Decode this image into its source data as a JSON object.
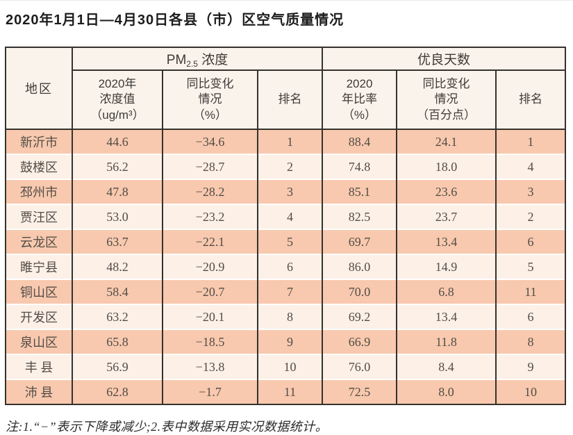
{
  "page": {
    "title": "2020年1月1日—4月30日各县（市）区空气质量情况",
    "note": "注:1.“−”表示下降或减少;2.表中数据采用实况数据统计。"
  },
  "colors": {
    "row_odd_bg": "#f8c9ae",
    "row_even_bg": "#fdf0e7",
    "header_bg": "#faf3ec",
    "border": "#35312d",
    "data_text": "#524c47"
  },
  "table": {
    "header": {
      "region": "地区",
      "pm25": {
        "prefix": "PM",
        "sub": "2.5",
        "suffix": " 浓度"
      },
      "good_days": "优良天数",
      "sub_pm_value": "2020年\n浓度值\n（ug/m³）",
      "sub_pm_change": "同比变化\n情况\n（%）",
      "sub_pm_rank": "排名",
      "sub_gd_rate": "2020\n年比率\n（%）",
      "sub_gd_change": "同比变化\n情况\n（百分点）",
      "sub_gd_rank": "排名"
    },
    "rows": [
      [
        "新沂市",
        "44.6",
        "−34.6",
        "1",
        "88.4",
        "24.1",
        "1"
      ],
      [
        "鼓楼区",
        "56.2",
        "−28.7",
        "2",
        "74.8",
        "18.0",
        "4"
      ],
      [
        "邳州市",
        "47.8",
        "−28.2",
        "3",
        "85.1",
        "23.6",
        "3"
      ],
      [
        "贾汪区",
        "53.0",
        "−23.2",
        "4",
        "82.5",
        "23.7",
        "2"
      ],
      [
        "云龙区",
        "63.7",
        "−22.1",
        "5",
        "69.7",
        "13.4",
        "6"
      ],
      [
        "睢宁县",
        "48.2",
        "−20.9",
        "6",
        "86.0",
        "14.9",
        "5"
      ],
      [
        "铜山区",
        "58.4",
        "−20.7",
        "7",
        "70.0",
        "6.8",
        "11"
      ],
      [
        "开发区",
        "63.2",
        "−20.1",
        "8",
        "69.2",
        "13.4",
        "6"
      ],
      [
        "泉山区",
        "65.8",
        "−18.5",
        "9",
        "66.9",
        "11.8",
        "8"
      ],
      [
        "丰 县",
        "56.9",
        "−13.8",
        "10",
        "76.0",
        "8.4",
        "9"
      ],
      [
        "沛 县",
        "62.8",
        "−1.7",
        "11",
        "72.5",
        "8.0",
        "10"
      ]
    ]
  },
  "chart_data": {
    "type": "table",
    "title": "2020年1月1日—4月30日各县（市）区空气质量情况",
    "column_groups": [
      "PM2.5浓度",
      "优良天数"
    ],
    "columns": [
      "地区",
      "PM2.5 2020年浓度值（ug/m³）",
      "PM2.5 同比变化情况（%）",
      "PM2.5 排名",
      "优良天数 2020年比率（%）",
      "优良天数 同比变化情况（百分点）",
      "优良天数 排名"
    ],
    "rows": [
      [
        "新沂市",
        44.6,
        -34.6,
        1,
        88.4,
        24.1,
        1
      ],
      [
        "鼓楼区",
        56.2,
        -28.7,
        2,
        74.8,
        18.0,
        4
      ],
      [
        "邳州市",
        47.8,
        -28.2,
        3,
        85.1,
        23.6,
        3
      ],
      [
        "贾汪区",
        53.0,
        -23.2,
        4,
        82.5,
        23.7,
        2
      ],
      [
        "云龙区",
        63.7,
        -22.1,
        5,
        69.7,
        13.4,
        6
      ],
      [
        "睢宁县",
        48.2,
        -20.9,
        6,
        86.0,
        14.9,
        5
      ],
      [
        "铜山区",
        58.4,
        -20.7,
        7,
        70.0,
        6.8,
        11
      ],
      [
        "开发区",
        63.2,
        -20.1,
        8,
        69.2,
        13.4,
        6
      ],
      [
        "泉山区",
        65.8,
        -18.5,
        9,
        66.9,
        11.8,
        8
      ],
      [
        "丰县",
        56.9,
        -13.8,
        10,
        76.0,
        8.4,
        9
      ],
      [
        "沛县",
        62.8,
        -1.7,
        11,
        72.5,
        8.0,
        10
      ]
    ],
    "footnote": "注:1.“−”表示下降或减少;2.表中数据采用实况数据统计。"
  }
}
